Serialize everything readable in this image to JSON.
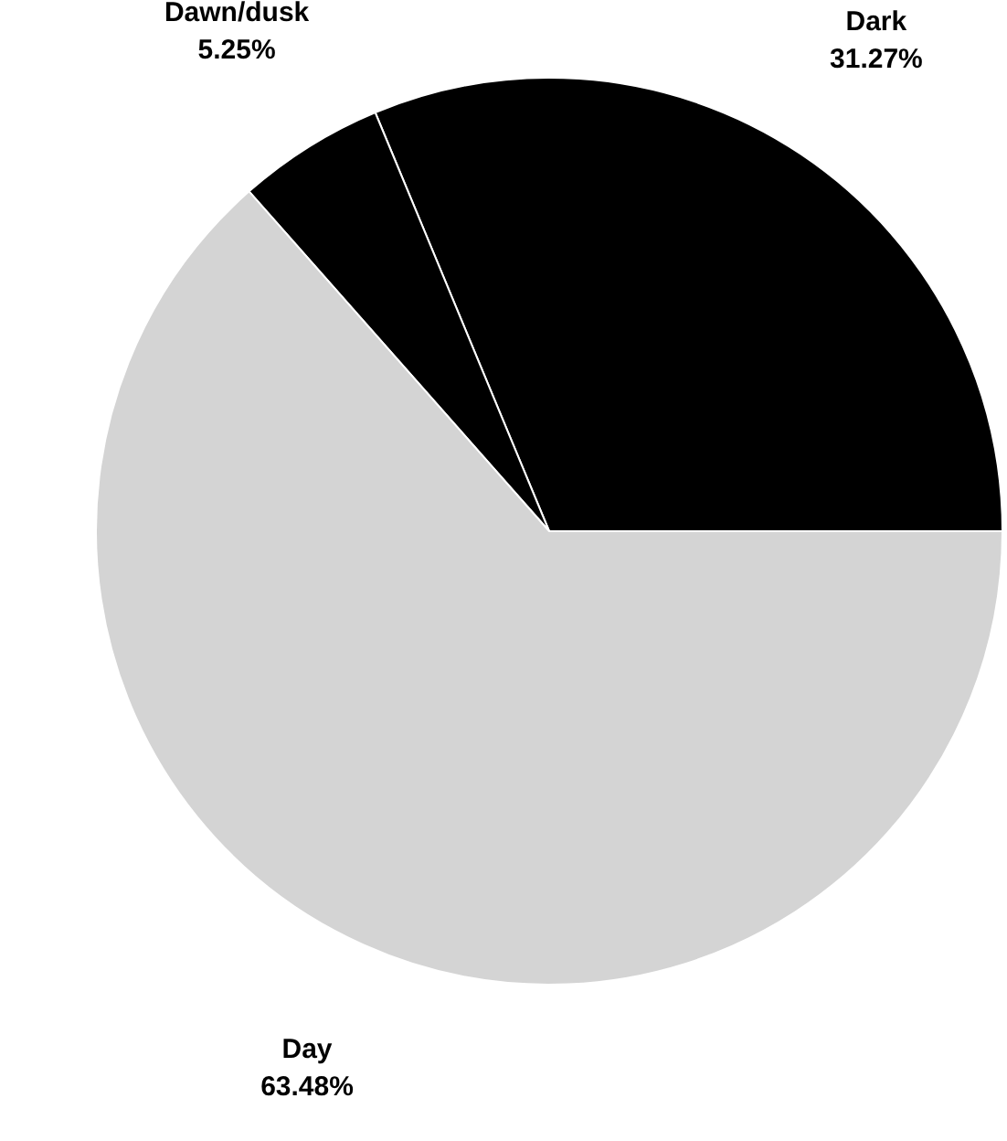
{
  "chart_data": {
    "type": "pie",
    "categories": [
      "Dark",
      "Dawn/dusk",
      "Day"
    ],
    "values": [
      31.27,
      5.25,
      63.48
    ],
    "colors": [
      "#000000",
      "#000000",
      "#d4d4d4"
    ],
    "value_labels": [
      "31.27%",
      "5.25%",
      "63.48%"
    ],
    "legend": false
  }
}
